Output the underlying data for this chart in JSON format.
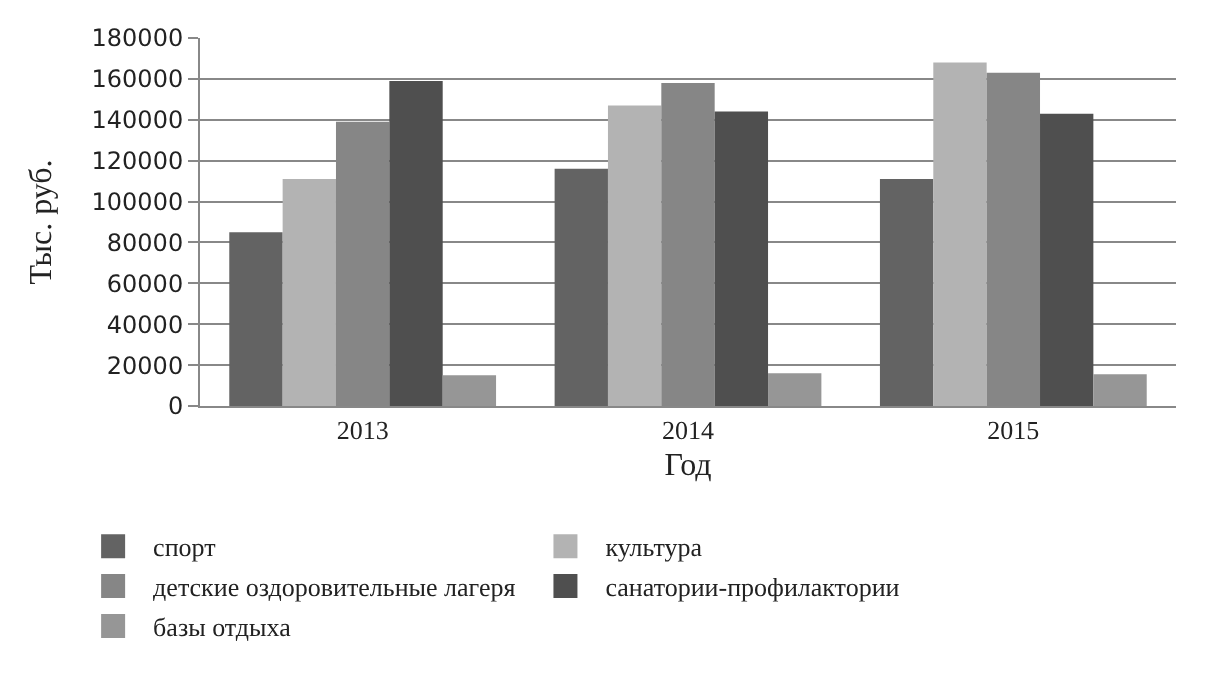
{
  "chart_data": {
    "type": "bar",
    "xlabel": "Год",
    "ylabel": "Тыс. руб.",
    "categories": [
      "2013",
      "2014",
      "2015"
    ],
    "series": [
      {
        "name": "спорт",
        "color": "#636363",
        "values": [
          85000,
          116000,
          111000
        ]
      },
      {
        "name": "культура",
        "color": "#b3b3b3",
        "values": [
          111000,
          147000,
          168000
        ]
      },
      {
        "name": "детские оздоровительные лагеря",
        "color": "#868686",
        "values": [
          139000,
          158000,
          163000
        ]
      },
      {
        "name": "санатории-профилактории",
        "color": "#4f4f4f",
        "values": [
          159000,
          144000,
          143000
        ]
      },
      {
        "name": "базы отдыха",
        "color": "#969696",
        "values": [
          15000,
          16000,
          15500
        ]
      }
    ],
    "ylim": [
      0,
      180000
    ],
    "yticks": [
      0,
      20000,
      40000,
      60000,
      80000,
      100000,
      120000,
      140000,
      160000,
      180000
    ],
    "grid": "y",
    "legend": "bottom"
  }
}
